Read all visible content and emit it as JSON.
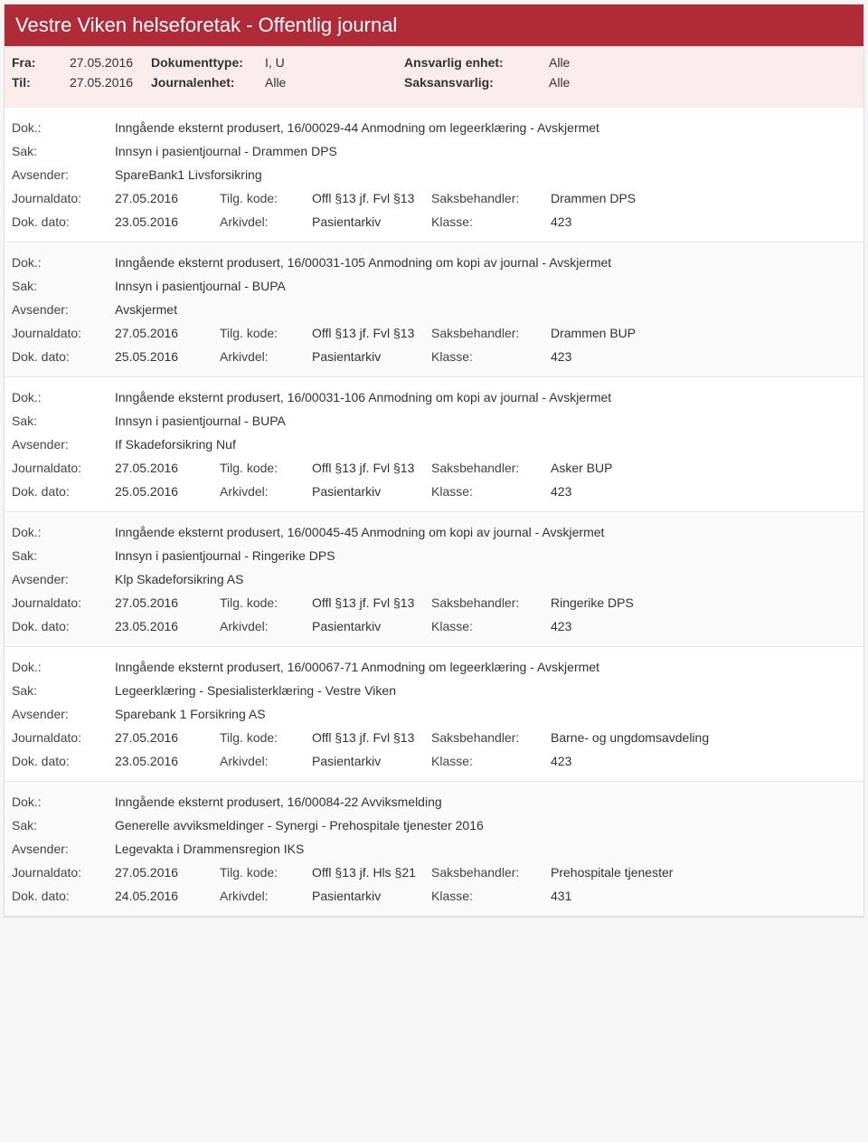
{
  "header": {
    "title": "Vestre Viken helseforetak - Offentlig journal"
  },
  "filters": {
    "fra_label": "Fra:",
    "fra_value": "27.05.2016",
    "til_label": "Til:",
    "til_value": "27.05.2016",
    "dokumenttype_label": "Dokumenttype:",
    "dokumenttype_value": "I, U",
    "journalenhet_label": "Journalenhet:",
    "journalenhet_value": "Alle",
    "ansvarlig_label": "Ansvarlig enhet:",
    "ansvarlig_value": "Alle",
    "saks_label": "Saksansvarlig:",
    "saks_value": "Alle"
  },
  "labels": {
    "dok": "Dok.:",
    "sak": "Sak:",
    "avsender": "Avsender:",
    "journaldato": "Journaldato:",
    "dokdato": "Dok. dato:",
    "tilgkode": "Tilg. kode:",
    "arkivdel": "Arkivdel:",
    "saksbehandler": "Saksbehandler:",
    "klasse": "Klasse:"
  },
  "entries": [
    {
      "dok": "Inngående eksternt produsert, 16/00029-44 Anmodning om legeerklæring - Avskjermet",
      "sak": "Innsyn i pasientjournal - Drammen DPS",
      "avsender": "SpareBank1 Livsforsikring",
      "journaldato": "27.05.2016",
      "tilgkode": "Offl §13 jf. Fvl §13",
      "saksbehandler": "Drammen DPS",
      "dokdato": "23.05.2016",
      "arkivdel": "Pasientarkiv",
      "klasse": "423"
    },
    {
      "dok": "Inngående eksternt produsert, 16/00031-105 Anmodning om kopi av journal - Avskjermet",
      "sak": "Innsyn i pasientjournal - BUPA",
      "avsender": "Avskjermet",
      "journaldato": "27.05.2016",
      "tilgkode": "Offl §13 jf. Fvl §13",
      "saksbehandler": "Drammen BUP",
      "dokdato": "25.05.2016",
      "arkivdel": "Pasientarkiv",
      "klasse": "423"
    },
    {
      "dok": "Inngående eksternt produsert, 16/00031-106 Anmodning om kopi av journal - Avskjermet",
      "sak": "Innsyn i pasientjournal - BUPA",
      "avsender": "If Skadeforsikring Nuf",
      "journaldato": "27.05.2016",
      "tilgkode": "Offl §13 jf. Fvl §13",
      "saksbehandler": "Asker BUP",
      "dokdato": "25.05.2016",
      "arkivdel": "Pasientarkiv",
      "klasse": "423"
    },
    {
      "dok": "Inngående eksternt produsert, 16/00045-45 Anmodning om kopi av journal - Avskjermet",
      "sak": "Innsyn i pasientjournal - Ringerike DPS",
      "avsender": "Klp Skadeforsikring AS",
      "journaldato": "27.05.2016",
      "tilgkode": "Offl §13 jf. Fvl §13",
      "saksbehandler": "Ringerike DPS",
      "dokdato": "23.05.2016",
      "arkivdel": "Pasientarkiv",
      "klasse": "423"
    },
    {
      "dok": "Inngående eksternt produsert, 16/00067-71 Anmodning om legeerklæring - Avskjermet",
      "sak": "Legeerklæring - Spesialisterklæring - Vestre Viken",
      "avsender": "Sparebank 1 Forsikring AS",
      "journaldato": "27.05.2016",
      "tilgkode": "Offl §13 jf. Fvl §13",
      "saksbehandler": "Barne- og ungdomsavdeling",
      "dokdato": "23.05.2016",
      "arkivdel": "Pasientarkiv",
      "klasse": "423"
    },
    {
      "dok": "Inngående eksternt produsert, 16/00084-22 Avviksmelding",
      "sak": "Generelle avviksmeldinger - Synergi - Prehospitale tjenester 2016",
      "avsender": "Legevakta i Drammensregion IKS",
      "journaldato": "27.05.2016",
      "tilgkode": "Offl §13 jf. Hls §21",
      "saksbehandler": "Prehospitale tjenester",
      "dokdato": "24.05.2016",
      "arkivdel": "Pasientarkiv",
      "klasse": "431"
    }
  ]
}
